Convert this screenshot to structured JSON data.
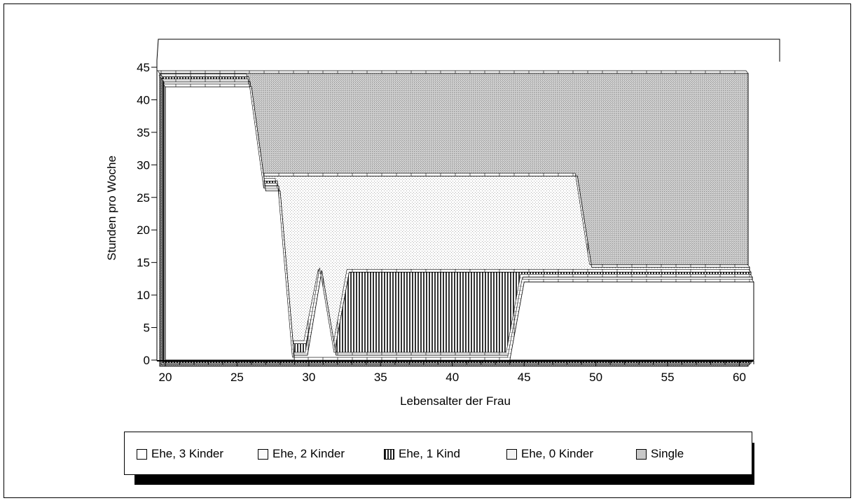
{
  "chart_data": {
    "type": "area",
    "xlabel": "Lebensalter der Frau",
    "ylabel": "Stunden pro Woche",
    "xlim": [
      20,
      61
    ],
    "ylim": [
      0,
      45
    ],
    "x_ticks": [
      20,
      25,
      30,
      35,
      40,
      45,
      50,
      55,
      60
    ],
    "y_ticks": [
      0,
      5,
      10,
      15,
      20,
      25,
      30,
      35,
      40,
      45
    ],
    "x": [
      20,
      21,
      22,
      23,
      24,
      25,
      26,
      27,
      28,
      29,
      30,
      31,
      32,
      33,
      34,
      35,
      36,
      37,
      38,
      39,
      40,
      41,
      42,
      43,
      44,
      45,
      46,
      47,
      48,
      49,
      50,
      51,
      52,
      53,
      54,
      55,
      56,
      57,
      58,
      59,
      60,
      61
    ],
    "series": [
      {
        "name": "Ehe, 3 Kinder",
        "fill": "#ffffff",
        "values": [
          42,
          42,
          42,
          42,
          42,
          42,
          42,
          26,
          26,
          0,
          0,
          0,
          0,
          0,
          0,
          0,
          0,
          0,
          0,
          0,
          0,
          0,
          0,
          0,
          0,
          12,
          12,
          12,
          12,
          12,
          12,
          12,
          12,
          12,
          12,
          12,
          12,
          12,
          12,
          12,
          12,
          12
        ]
      },
      {
        "name": "Ehe, 2 Kinder",
        "fill": "#ffffff",
        "values": [
          43,
          43,
          43,
          43,
          43,
          43,
          43,
          27,
          27,
          1,
          1,
          14,
          1,
          1,
          1,
          1,
          1,
          1,
          1,
          1,
          1,
          1,
          1,
          1,
          1,
          13,
          13,
          13,
          13,
          13,
          13,
          13,
          13,
          13,
          13,
          13,
          13,
          13,
          13,
          13,
          13,
          13
        ]
      },
      {
        "name": "Ehe, 1 Kind",
        "fill": "vstripe",
        "values": [
          44,
          44,
          44,
          44,
          44,
          44,
          44,
          28,
          28,
          3,
          3,
          14,
          2,
          14,
          14,
          14,
          14,
          14,
          14,
          14,
          14,
          14,
          14,
          14,
          14,
          14,
          14,
          14,
          14,
          14,
          14,
          14,
          14,
          14,
          14,
          14,
          14,
          14,
          14,
          14,
          14,
          14
        ]
      },
      {
        "name": "Ehe, 0 Kinder",
        "fill": "dots",
        "values": [
          44,
          44,
          44,
          44,
          44,
          44,
          44,
          29,
          29,
          29,
          29,
          29,
          29,
          29,
          29,
          29,
          29,
          29,
          29,
          29,
          29,
          29,
          29,
          29,
          29,
          29,
          29,
          29,
          29,
          29,
          15,
          15,
          15,
          15,
          15,
          15,
          15,
          15,
          15,
          15,
          15,
          15
        ]
      },
      {
        "name": "Single",
        "fill": "grey",
        "values": [
          45,
          45,
          45,
          45,
          45,
          45,
          45,
          45,
          45,
          45,
          45,
          45,
          45,
          45,
          45,
          45,
          45,
          45,
          45,
          45,
          45,
          45,
          45,
          45,
          45,
          45,
          45,
          45,
          45,
          45,
          45,
          45,
          45,
          45,
          45,
          45,
          45,
          45,
          45,
          45,
          45,
          45
        ]
      }
    ],
    "legend_position": "bottom"
  }
}
